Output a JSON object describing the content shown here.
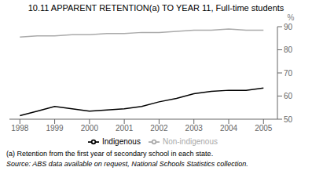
{
  "chart_data": {
    "type": "line",
    "title": "10.11  APPARENT RETENTION(a) TO YEAR 11, Full-time students",
    "ylabel": "%",
    "x": [
      1998,
      1998.5,
      1999,
      1999.5,
      2000,
      2000.5,
      2001,
      2001.5,
      2002,
      2002.5,
      2003,
      2003.5,
      2004,
      2004.5,
      2005
    ],
    "series": [
      {
        "name": "Indigenous",
        "color": "#000000",
        "values": [
          51.5,
          53.5,
          55.5,
          54.5,
          53.5,
          54.0,
          54.5,
          55.5,
          57.5,
          59.0,
          61.0,
          62.0,
          62.5,
          62.5,
          63.5
        ]
      },
      {
        "name": "Non-indigenous",
        "color": "#aaaaaa",
        "values": [
          85.5,
          86.0,
          86.0,
          86.5,
          86.5,
          87.0,
          87.0,
          87.5,
          87.5,
          88.0,
          88.5,
          88.5,
          89.0,
          88.5,
          88.5
        ]
      }
    ],
    "xlim": [
      1997.7,
      2005.4
    ],
    "xticks": [
      1998,
      1999,
      2000,
      2001,
      2002,
      2003,
      2004,
      2005
    ],
    "ylim": [
      50,
      90
    ],
    "yticks": [
      50,
      60,
      70,
      80,
      90
    ],
    "annotations": [
      "(a) Retention from the first year of secondary school in each state.",
      "Source: ABS data available on request, National Schools Statistics collection."
    ],
    "grid": false,
    "legend": "bottom"
  }
}
